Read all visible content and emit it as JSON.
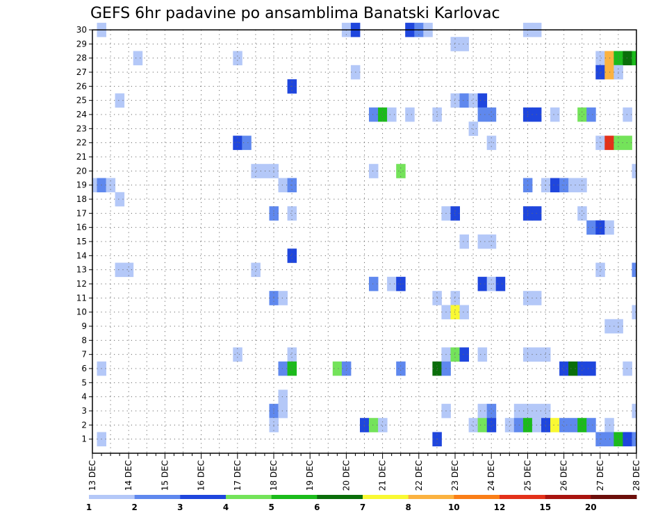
{
  "chart_data": {
    "type": "heatmap",
    "title": "GEFS 6hr padavine po ansamblima Banatski Karlovac",
    "x_tick_labels": [
      "13 DEC",
      "14 DEC",
      "15 DEC",
      "16 DEC",
      "17 DEC",
      "18 DEC",
      "19 DEC",
      "20 DEC",
      "21 DEC",
      "22 DEC",
      "23 DEC",
      "24 DEC",
      "25 DEC",
      "26 DEC",
      "27 DEC",
      "28 DEC"
    ],
    "y_tick_labels": [
      "1",
      "2",
      "3",
      "4",
      "5",
      "6",
      "7",
      "8",
      "9",
      "10",
      "11",
      "12",
      "13",
      "14",
      "15",
      "16",
      "17",
      "18",
      "19",
      "20",
      "21",
      "22",
      "23",
      "24",
      "25",
      "26",
      "27",
      "28",
      "29",
      "30"
    ],
    "xlim_days": [
      13,
      28
    ],
    "ylim_members": [
      0,
      30
    ],
    "grid": true,
    "legend_placement": "bottom",
    "colorbar": {
      "labels": [
        "1",
        "2",
        "3",
        "4",
        "5",
        "6",
        "7",
        "8",
        "10",
        "12",
        "15",
        "20"
      ],
      "colors": [
        "#b4c8f8",
        "#5f88ee",
        "#1f46dd",
        "#74e35a",
        "#1bbb1b",
        "#0a6e0a",
        "#f9f933",
        "#fbb240",
        "#fa7e17",
        "#e3311a",
        "#a9140f",
        "#6c0e0a"
      ]
    },
    "cells": [
      [
        13.25,
        30,
        0
      ],
      [
        20.0,
        30,
        0
      ],
      [
        20.25,
        30,
        2
      ],
      [
        21.75,
        30,
        2
      ],
      [
        22.0,
        30,
        1
      ],
      [
        22.25,
        30,
        0
      ],
      [
        25.0,
        30,
        0
      ],
      [
        25.25,
        30,
        0
      ],
      [
        23.0,
        29,
        0
      ],
      [
        23.25,
        29,
        0
      ],
      [
        14.25,
        28,
        0
      ],
      [
        17.0,
        28,
        0
      ],
      [
        27.0,
        28,
        0
      ],
      [
        27.25,
        28,
        7
      ],
      [
        27.5,
        28,
        4
      ],
      [
        27.75,
        28,
        5
      ],
      [
        28.0,
        28,
        4
      ],
      [
        20.25,
        27,
        0
      ],
      [
        27.0,
        27,
        2
      ],
      [
        27.25,
        27,
        7
      ],
      [
        27.5,
        27,
        0
      ],
      [
        18.5,
        26,
        2
      ],
      [
        13.75,
        25,
        0
      ],
      [
        23.0,
        25,
        0
      ],
      [
        23.25,
        25,
        1
      ],
      [
        23.5,
        25,
        0
      ],
      [
        23.75,
        25,
        2
      ],
      [
        20.75,
        24,
        1
      ],
      [
        21.0,
        24,
        4
      ],
      [
        21.25,
        24,
        0
      ],
      [
        21.75,
        24,
        0
      ],
      [
        22.5,
        24,
        0
      ],
      [
        23.75,
        24,
        1
      ],
      [
        24.0,
        24,
        1
      ],
      [
        25.0,
        24,
        2
      ],
      [
        25.25,
        24,
        2
      ],
      [
        25.75,
        24,
        0
      ],
      [
        26.5,
        24,
        3
      ],
      [
        26.75,
        24,
        1
      ],
      [
        27.75,
        24,
        0
      ],
      [
        23.5,
        23,
        0
      ],
      [
        17.0,
        22,
        2
      ],
      [
        17.25,
        22,
        1
      ],
      [
        24.0,
        22,
        0
      ],
      [
        27.0,
        22,
        0
      ],
      [
        27.25,
        22,
        9
      ],
      [
        27.5,
        22,
        3
      ],
      [
        27.75,
        22,
        3
      ],
      [
        17.5,
        20,
        0
      ],
      [
        17.75,
        20,
        0
      ],
      [
        18.0,
        20,
        0
      ],
      [
        20.75,
        20,
        0
      ],
      [
        21.5,
        20,
        3
      ],
      [
        28.0,
        20,
        0
      ],
      [
        13.0,
        19,
        0
      ],
      [
        13.25,
        19,
        1
      ],
      [
        13.5,
        19,
        0
      ],
      [
        18.25,
        19,
        0
      ],
      [
        18.5,
        19,
        1
      ],
      [
        25.0,
        19,
        1
      ],
      [
        25.5,
        19,
        0
      ],
      [
        25.75,
        19,
        2
      ],
      [
        26.0,
        19,
        1
      ],
      [
        26.25,
        19,
        0
      ],
      [
        26.5,
        19,
        0
      ],
      [
        13.75,
        18,
        0
      ],
      [
        18.0,
        17,
        1
      ],
      [
        18.5,
        17,
        0
      ],
      [
        22.75,
        17,
        0
      ],
      [
        23.0,
        17,
        2
      ],
      [
        25.0,
        17,
        2
      ],
      [
        25.25,
        17,
        2
      ],
      [
        26.5,
        17,
        0
      ],
      [
        26.75,
        16,
        1
      ],
      [
        27.0,
        16,
        2
      ],
      [
        27.25,
        16,
        0
      ],
      [
        23.25,
        15,
        0
      ],
      [
        23.75,
        15,
        0
      ],
      [
        24.0,
        15,
        0
      ],
      [
        18.5,
        14,
        2
      ],
      [
        13.75,
        13,
        0
      ],
      [
        14.0,
        13,
        0
      ],
      [
        17.5,
        13,
        0
      ],
      [
        27.0,
        13,
        0
      ],
      [
        28.0,
        13,
        1
      ],
      [
        20.75,
        12,
        1
      ],
      [
        21.25,
        12,
        0
      ],
      [
        21.5,
        12,
        2
      ],
      [
        23.75,
        12,
        2
      ],
      [
        24.0,
        12,
        0
      ],
      [
        24.25,
        12,
        2
      ],
      [
        18.0,
        11,
        1
      ],
      [
        18.25,
        11,
        0
      ],
      [
        22.5,
        11,
        0
      ],
      [
        23.0,
        11,
        0
      ],
      [
        25.0,
        11,
        0
      ],
      [
        25.25,
        11,
        0
      ],
      [
        22.75,
        10,
        0
      ],
      [
        23.0,
        10,
        6
      ],
      [
        23.25,
        10,
        0
      ],
      [
        28.0,
        10,
        0
      ],
      [
        27.25,
        9,
        0
      ],
      [
        27.5,
        9,
        0
      ],
      [
        17.0,
        7,
        0
      ],
      [
        18.5,
        7,
        0
      ],
      [
        22.75,
        7,
        0
      ],
      [
        23.0,
        7,
        3
      ],
      [
        23.25,
        7,
        2
      ],
      [
        23.75,
        7,
        0
      ],
      [
        25.0,
        7,
        0
      ],
      [
        25.25,
        7,
        0
      ],
      [
        25.5,
        7,
        0
      ],
      [
        13.25,
        6,
        0
      ],
      [
        18.25,
        6,
        1
      ],
      [
        18.5,
        6,
        4
      ],
      [
        19.75,
        6,
        3
      ],
      [
        20.0,
        6,
        1
      ],
      [
        21.5,
        6,
        1
      ],
      [
        22.5,
        6,
        5
      ],
      [
        22.75,
        6,
        1
      ],
      [
        26.0,
        6,
        2
      ],
      [
        26.25,
        6,
        5
      ],
      [
        26.5,
        6,
        2
      ],
      [
        26.75,
        6,
        2
      ],
      [
        27.75,
        6,
        0
      ],
      [
        18.25,
        4,
        0
      ],
      [
        18.0,
        3,
        1
      ],
      [
        18.25,
        3,
        0
      ],
      [
        22.75,
        3,
        0
      ],
      [
        23.75,
        3,
        0
      ],
      [
        24.0,
        3,
        1
      ],
      [
        24.75,
        3,
        0
      ],
      [
        25.0,
        3,
        0
      ],
      [
        25.25,
        3,
        0
      ],
      [
        25.5,
        3,
        0
      ],
      [
        28.0,
        3,
        0
      ],
      [
        18.0,
        2,
        0
      ],
      [
        20.5,
        2,
        2
      ],
      [
        20.75,
        2,
        3
      ],
      [
        21.0,
        2,
        0
      ],
      [
        23.5,
        2,
        0
      ],
      [
        23.75,
        2,
        3
      ],
      [
        24.0,
        2,
        2
      ],
      [
        24.5,
        2,
        0
      ],
      [
        24.75,
        2,
        1
      ],
      [
        25.0,
        2,
        4
      ],
      [
        25.25,
        2,
        0
      ],
      [
        25.5,
        2,
        2
      ],
      [
        25.75,
        2,
        6
      ],
      [
        26.0,
        2,
        1
      ],
      [
        26.25,
        2,
        1
      ],
      [
        26.5,
        2,
        4
      ],
      [
        26.75,
        2,
        1
      ],
      [
        27.25,
        2,
        0
      ],
      [
        13.25,
        1,
        0
      ],
      [
        22.5,
        1,
        2
      ],
      [
        27.0,
        1,
        1
      ],
      [
        27.25,
        1,
        1
      ],
      [
        27.5,
        1,
        4
      ],
      [
        27.75,
        1,
        2
      ],
      [
        28.0,
        1,
        1
      ]
    ]
  }
}
